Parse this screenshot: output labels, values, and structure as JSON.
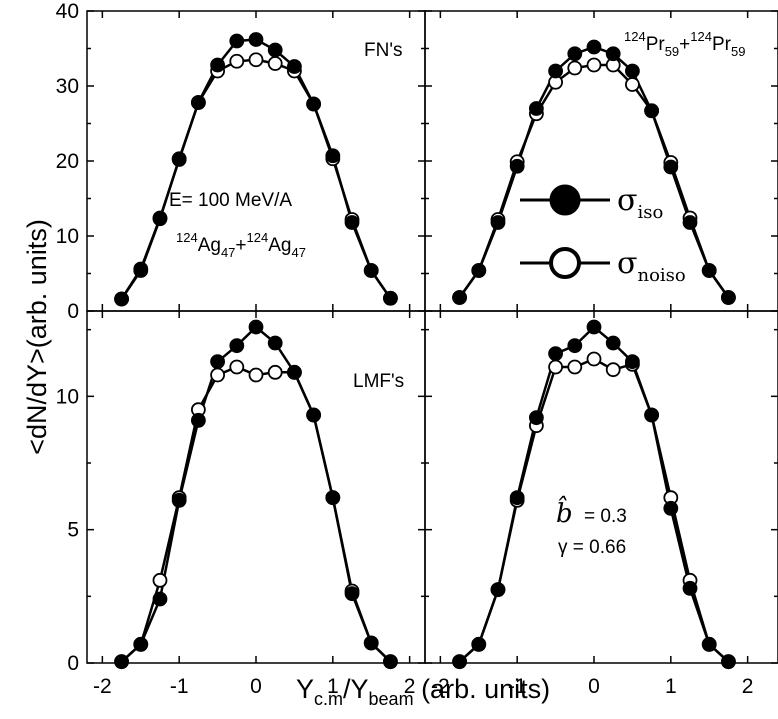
{
  "figure": {
    "ylabel": "<dN/dY>(arb. units)",
    "xlabel_main": "Y",
    "xlabel_sub1": "c.m",
    "xlabel_mid": "/Y",
    "xlabel_sub2": "beam",
    "xlabel_tail": " (arb. units)"
  },
  "chart_data": [
    {
      "type": "line",
      "panel": "top-left",
      "xlim": [
        -2.2,
        2.2
      ],
      "ylim": [
        0,
        40
      ],
      "yticks": [
        0,
        10,
        20,
        30,
        40
      ],
      "xticks": [
        -2,
        -1,
        0,
        1,
        2
      ],
      "annotation": "FN's",
      "energy_label": "E= 100 MeV/A",
      "system": {
        "m1": "124",
        "el1": "Ag",
        "z1": "47",
        "m2": "124",
        "el2": "Ag",
        "z2": "47"
      },
      "series": [
        {
          "name": "σiso",
          "marker": "filled",
          "x": [
            -1.75,
            -1.5,
            -1.25,
            -1.0,
            -0.75,
            -0.5,
            -0.25,
            0.0,
            0.25,
            0.5,
            0.75,
            1.0,
            1.25,
            1.5,
            1.75
          ],
          "y": [
            1.6,
            5.6,
            12.4,
            20.2,
            27.8,
            32.8,
            36.0,
            36.2,
            34.8,
            32.6,
            27.6,
            20.7,
            11.8,
            5.4,
            1.7
          ]
        },
        {
          "name": "σnoiso",
          "marker": "open",
          "x": [
            -1.75,
            -1.5,
            -1.25,
            -1.0,
            -0.75,
            -0.5,
            -0.25,
            0.0,
            0.25,
            0.5,
            0.75,
            1.0,
            1.25,
            1.5,
            1.75
          ],
          "y": [
            1.6,
            5.4,
            12.3,
            20.3,
            27.8,
            32.0,
            33.3,
            33.5,
            33.0,
            32.0,
            27.6,
            20.3,
            12.2,
            5.4,
            1.7
          ]
        }
      ]
    },
    {
      "type": "line",
      "panel": "top-right",
      "xlim": [
        -2.2,
        2.2
      ],
      "ylim": [
        0,
        40
      ],
      "xticks": [
        -2,
        -1,
        0,
        1,
        2
      ],
      "system": {
        "m1": "124",
        "el1": "Pr",
        "z1": "59",
        "m2": "124",
        "el2": "Pr",
        "z2": "59"
      },
      "legend": [
        {
          "symbol": "σ",
          "sub": "iso",
          "marker": "filled"
        },
        {
          "symbol": "σ",
          "sub": "noiso",
          "marker": "open"
        }
      ],
      "series": [
        {
          "name": "σiso",
          "marker": "filled",
          "x": [
            -1.75,
            -1.5,
            -1.25,
            -1.0,
            -0.75,
            -0.5,
            -0.25,
            0.0,
            0.25,
            0.5,
            0.75,
            1.0,
            1.25,
            1.5,
            1.75
          ],
          "y": [
            1.8,
            5.4,
            11.8,
            19.3,
            27.0,
            32.0,
            34.3,
            35.2,
            34.3,
            32.0,
            26.7,
            19.2,
            11.8,
            5.4,
            1.8
          ]
        },
        {
          "name": "σnoiso",
          "marker": "open",
          "x": [
            -1.75,
            -1.5,
            -1.25,
            -1.0,
            -0.75,
            -0.5,
            -0.25,
            0.0,
            0.25,
            0.5,
            0.75,
            1.0,
            1.25,
            1.5,
            1.75
          ],
          "y": [
            1.8,
            5.4,
            12.2,
            19.9,
            26.3,
            30.5,
            32.4,
            32.8,
            32.8,
            30.2,
            26.7,
            19.8,
            12.4,
            5.4,
            1.8
          ]
        }
      ]
    },
    {
      "type": "line",
      "panel": "bottom-left",
      "xlim": [
        -2.2,
        2.2
      ],
      "ylim": [
        0,
        13.2
      ],
      "yticks": [
        0,
        5,
        10
      ],
      "xticks": [
        -2,
        -1,
        0,
        1,
        2
      ],
      "annotation": "LMF's",
      "series": [
        {
          "name": "σiso",
          "marker": "filled",
          "x": [
            -1.75,
            -1.5,
            -1.25,
            -1.0,
            -0.75,
            -0.5,
            -0.25,
            0.0,
            0.25,
            0.5,
            0.75,
            1.0,
            1.25,
            1.5,
            1.75
          ],
          "y": [
            0.05,
            0.7,
            2.4,
            6.1,
            9.1,
            11.3,
            11.9,
            12.6,
            12.0,
            10.9,
            9.3,
            6.2,
            2.6,
            0.75,
            0.05
          ]
        },
        {
          "name": "σnoiso",
          "marker": "open",
          "x": [
            -1.75,
            -1.5,
            -1.25,
            -1.0,
            -0.75,
            -0.5,
            -0.25,
            0.0,
            0.25,
            0.5,
            0.75,
            1.0,
            1.25,
            1.5,
            1.75
          ],
          "y": [
            0.05,
            0.7,
            3.1,
            6.2,
            9.5,
            10.8,
            11.1,
            10.8,
            10.9,
            10.9,
            9.3,
            6.2,
            2.7,
            0.75,
            0.05
          ]
        }
      ]
    },
    {
      "type": "line",
      "panel": "bottom-right",
      "xlim": [
        -2.2,
        2.2
      ],
      "ylim": [
        0,
        13.2
      ],
      "xticks": [
        -2,
        -1,
        0,
        1,
        2
      ],
      "param_b": "= 0.3",
      "param_b_symbol": "b̂",
      "param_gamma": "γ = 0.66",
      "series": [
        {
          "name": "σiso",
          "marker": "filled",
          "x": [
            -1.75,
            -1.5,
            -1.25,
            -1.0,
            -0.75,
            -0.5,
            -0.25,
            0.0,
            0.25,
            0.5,
            0.75,
            1.0,
            1.25,
            1.5,
            1.75
          ],
          "y": [
            0.05,
            0.7,
            2.75,
            6.2,
            9.2,
            11.6,
            11.9,
            12.6,
            12.0,
            11.3,
            9.3,
            5.8,
            2.8,
            0.7,
            0.05
          ]
        },
        {
          "name": "σnoiso",
          "marker": "open",
          "x": [
            -1.75,
            -1.5,
            -1.25,
            -1.0,
            -0.75,
            -0.5,
            -0.25,
            0.0,
            0.25,
            0.5,
            0.75,
            1.0,
            1.25,
            1.5,
            1.75
          ],
          "y": [
            0.05,
            0.7,
            2.75,
            6.1,
            8.9,
            11.1,
            11.1,
            11.4,
            11.0,
            11.2,
            9.3,
            6.2,
            3.1,
            0.7,
            0.05
          ]
        }
      ]
    }
  ]
}
